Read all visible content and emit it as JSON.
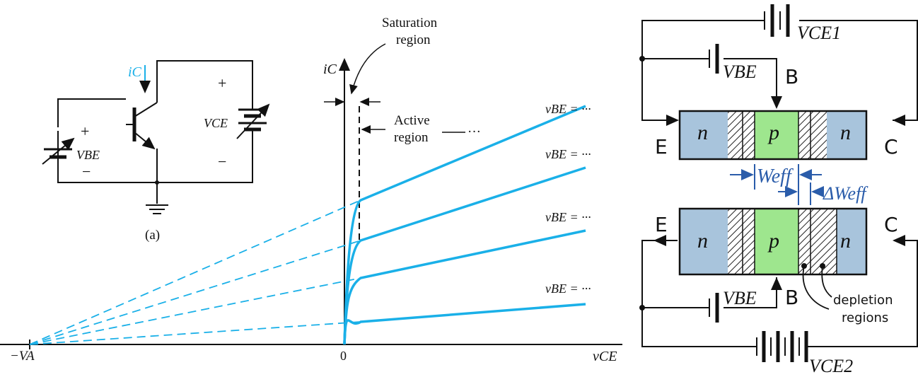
{
  "circuit": {
    "ic_label": "iC",
    "vbe_label": "VBE",
    "vce_label": "VCE",
    "plus": "+",
    "minus": "−",
    "caption": "(a)"
  },
  "graph": {
    "y_axis_label": "iC",
    "x_axis_label": "vCE",
    "origin_label": "0",
    "va_label": "−VA",
    "saturation_label_line1": "Saturation",
    "saturation_label_line2": "region",
    "active_label_line1": "Active",
    "active_label_line2": "region",
    "active_dots": "···",
    "curve_labels": [
      "vBE = ···",
      "vBE = ···",
      "vBE = ···",
      "vBE = ···"
    ],
    "curve_color": "#1ab0e8"
  },
  "transistor_top": {
    "vce_label": "VCE1",
    "vbe_label": "VBE",
    "b_label": "B",
    "e_label": "E",
    "c_label": "C",
    "n_left": "n",
    "p_mid": "p",
    "n_right": "n"
  },
  "width_labels": {
    "weff": "Weff",
    "delta_weff": "ΔWeff"
  },
  "transistor_bottom": {
    "vce_label": "VCE2",
    "vbe_label": "VBE",
    "b_label": "B",
    "e_label": "E",
    "c_label": "C",
    "n_left": "n",
    "p_mid": "p",
    "n_right": "n",
    "depletion_line1": "depletion",
    "depletion_line2": "regions"
  },
  "colors": {
    "n_region": "#a8c4dc",
    "p_region": "#9ee68e",
    "annotation_blue": "#2a5caa",
    "ic_blue": "#1ab0e8"
  }
}
